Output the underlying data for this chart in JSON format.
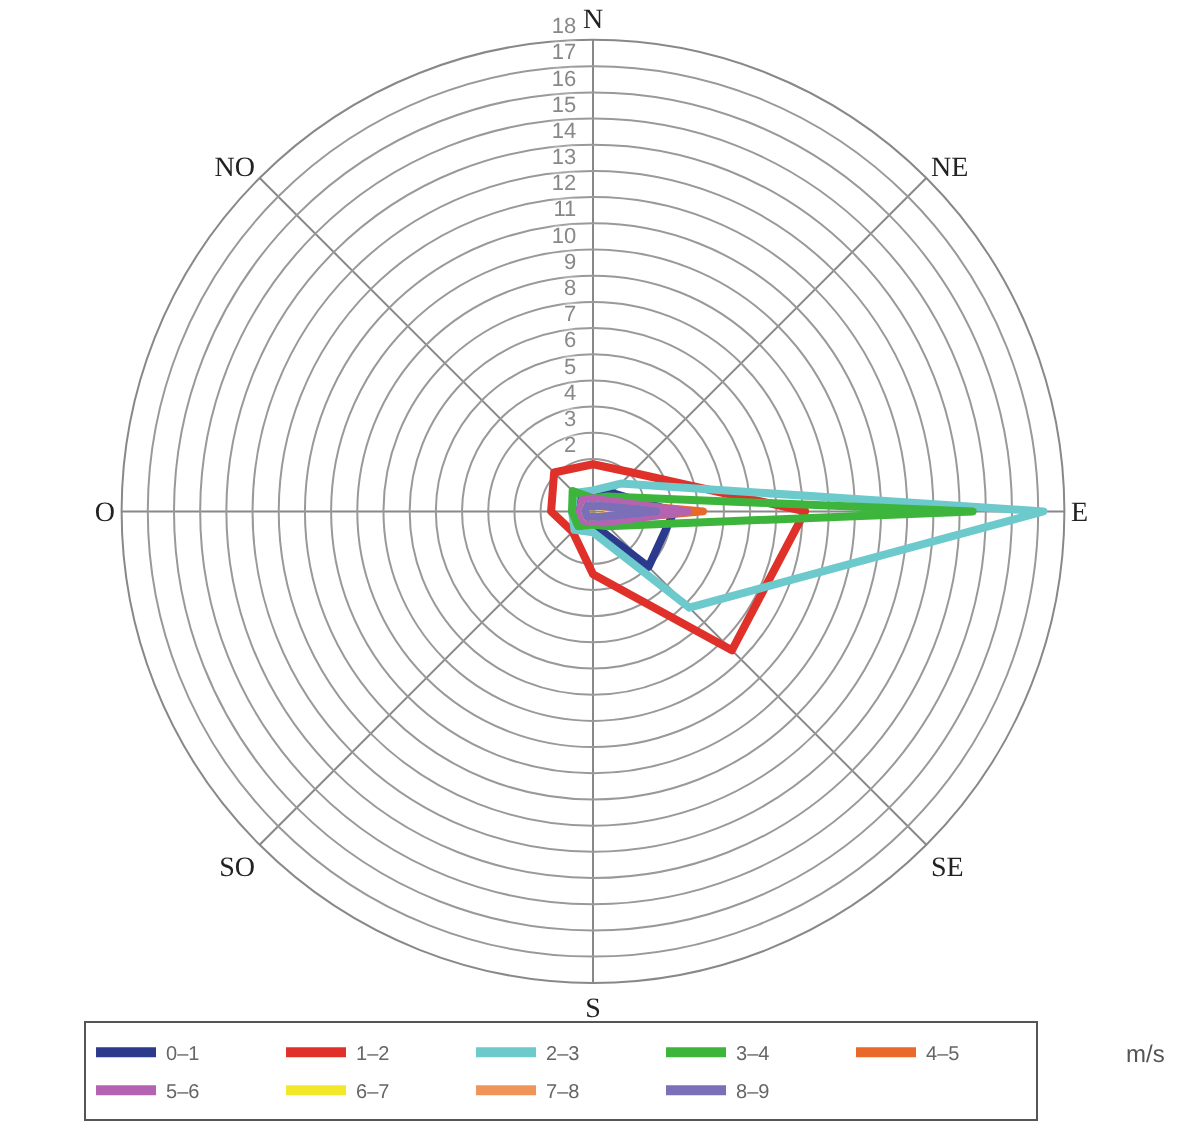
{
  "chart_data": {
    "type": "radar",
    "categories": [
      "N",
      "NE",
      "E",
      "SE",
      "S",
      "SO",
      "O",
      "NO"
    ],
    "ylim": [
      0,
      18
    ],
    "yticks": [
      2,
      3,
      4,
      5,
      6,
      7,
      8,
      9,
      10,
      11,
      12,
      13,
      14,
      15,
      16,
      17,
      18
    ],
    "legend": "bottom",
    "legend_title": "m/s",
    "marker": "none",
    "line_style": "solid",
    "grid": true,
    "series": [
      {
        "name": "0–1",
        "color": "#2b3a8c",
        "values": [
          0.5,
          1,
          3.1,
          3,
          0.5,
          0.8,
          0.5,
          1
        ]
      },
      {
        "name": "1–2",
        "color": "#e0302a",
        "values": [
          1.8,
          2.1,
          8.1,
          7.5,
          2.4,
          1.1,
          1.6,
          2.1
        ]
      },
      {
        "name": "2–3",
        "color": "#6cc9cc",
        "values": [
          0.8,
          1.5,
          17.2,
          5.2,
          0.8,
          1,
          0.8,
          1
        ]
      },
      {
        "name": "3–4",
        "color": "#3db53d",
        "values": [
          0.5,
          0.8,
          14.5,
          0.8,
          0.5,
          0.8,
          0.8,
          1.1
        ]
      },
      {
        "name": "4–5",
        "color": "#e8692a",
        "values": [
          0.4,
          0.5,
          4.2,
          0.5,
          0.3,
          0.4,
          0.4,
          0.5
        ]
      },
      {
        "name": "5–6",
        "color": "#b463b0",
        "values": [
          0.5,
          0.6,
          3.6,
          0.6,
          0.4,
          0.5,
          0.5,
          0.6
        ]
      },
      {
        "name": "6–7",
        "color": "#f2e829",
        "values": [
          0.2,
          0.3,
          1.2,
          0.3,
          0.2,
          0.3,
          0.3,
          0.3
        ]
      },
      {
        "name": "7–8",
        "color": "#f0945a",
        "values": [
          0.2,
          0.3,
          1.8,
          0.3,
          0.2,
          0.3,
          0.3,
          0.3
        ]
      },
      {
        "name": "8–9",
        "color": "#7b6fb8",
        "values": [
          0.2,
          0.3,
          2.4,
          0.3,
          0.2,
          0.3,
          0.3,
          0.3
        ]
      }
    ]
  }
}
